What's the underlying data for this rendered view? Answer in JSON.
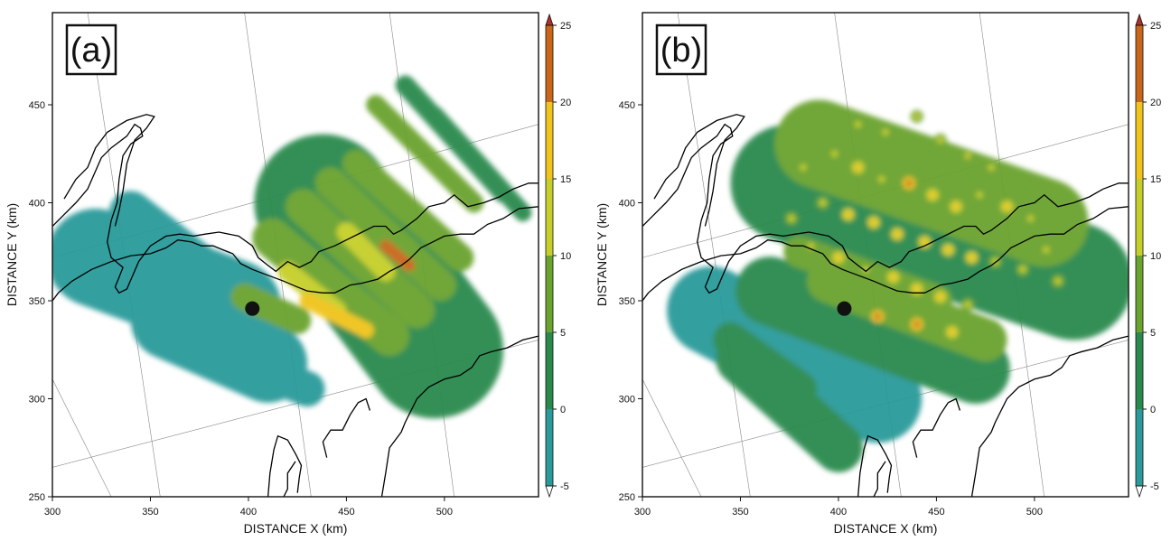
{
  "chart_data": [
    {
      "type": "heatmap",
      "panel_label": "(a)",
      "xlabel": "DISTANCE X (km)",
      "ylabel": "DISTANCE Y (km)",
      "xlim": [
        300,
        548
      ],
      "ylim": [
        250,
        497
      ],
      "x_ticks": [
        "300",
        "350",
        "400",
        "450",
        "500"
      ],
      "y_ticks": [
        "250",
        "300",
        "350",
        "400",
        "450"
      ],
      "colorbar": {
        "ticks": [
          "-5",
          "0",
          "5",
          "10",
          "15",
          "20",
          "25"
        ],
        "range": [
          -5,
          25
        ],
        "colors": [
          "#2a9a9a",
          "#2a8a4e",
          "#6aa32e",
          "#c6cf2a",
          "#f0c41a",
          "#c9661a"
        ]
      },
      "radar_site": {
        "x": 402,
        "y": 346
      },
      "bands": [
        {
          "x1": 322,
          "y1": 372,
          "x2": 392,
          "y2": 346,
          "width": 50,
          "value": -2
        },
        {
          "x1": 340,
          "y1": 395,
          "x2": 395,
          "y2": 352,
          "width": 22,
          "value": -1
        },
        {
          "x1": 360,
          "y1": 340,
          "x2": 410,
          "y2": 318,
          "width": 40,
          "value": -2
        },
        {
          "x1": 380,
          "y1": 325,
          "x2": 430,
          "y2": 305,
          "width": 18,
          "value": -2
        },
        {
          "x1": 438,
          "y1": 400,
          "x2": 495,
          "y2": 325,
          "width": 70,
          "value": 3
        },
        {
          "x1": 412,
          "y1": 382,
          "x2": 472,
          "y2": 332,
          "width": 20,
          "value": 8
        },
        {
          "x1": 428,
          "y1": 398,
          "x2": 486,
          "y2": 345,
          "width": 18,
          "value": 9
        },
        {
          "x1": 442,
          "y1": 410,
          "x2": 498,
          "y2": 358,
          "width": 16,
          "value": 8
        },
        {
          "x1": 455,
          "y1": 420,
          "x2": 508,
          "y2": 372,
          "width": 14,
          "value": 7
        },
        {
          "x1": 465,
          "y1": 450,
          "x2": 515,
          "y2": 400,
          "width": 10,
          "value": 5
        },
        {
          "x1": 480,
          "y1": 460,
          "x2": 530,
          "y2": 405,
          "width": 10,
          "value": 4
        },
        {
          "x1": 495,
          "y1": 445,
          "x2": 540,
          "y2": 395,
          "width": 9,
          "value": 4
        },
        {
          "x1": 420,
          "y1": 365,
          "x2": 445,
          "y2": 345,
          "width": 10,
          "value": 14
        },
        {
          "x1": 450,
          "y1": 385,
          "x2": 470,
          "y2": 365,
          "width": 10,
          "value": 13
        },
        {
          "x1": 430,
          "y1": 350,
          "x2": 460,
          "y2": 335,
          "width": 8,
          "value": 17
        },
        {
          "x1": 470,
          "y1": 378,
          "x2": 482,
          "y2": 368,
          "width": 6,
          "value": 20
        },
        {
          "x1": 398,
          "y1": 352,
          "x2": 425,
          "y2": 340,
          "width": 14,
          "value": 6
        }
      ]
    },
    {
      "type": "heatmap",
      "panel_label": "(b)",
      "xlabel": "DISTANCE X (km)",
      "ylabel": "DISTANCE Y (km)",
      "xlim": [
        300,
        548
      ],
      "ylim": [
        250,
        497
      ],
      "x_ticks": [
        "300",
        "350",
        "400",
        "450",
        "500"
      ],
      "y_ticks": [
        "250",
        "300",
        "350",
        "400",
        "450"
      ],
      "colorbar": {
        "ticks": [
          "-5",
          "0",
          "5",
          "10",
          "15",
          "20",
          "25"
        ],
        "range": [
          -5,
          25
        ],
        "colors": [
          "#2a9a9a",
          "#2a8a4e",
          "#6aa32e",
          "#c6cf2a",
          "#f0c41a",
          "#c9661a"
        ]
      },
      "radar_site": {
        "x": 403,
        "y": 346
      },
      "bands": [
        {
          "x1": 335,
          "y1": 345,
          "x2": 420,
          "y2": 300,
          "width": 45,
          "value": -1
        },
        {
          "x1": 350,
          "y1": 320,
          "x2": 400,
          "y2": 275,
          "width": 25,
          "value": 0
        },
        {
          "x1": 365,
          "y1": 355,
          "x2": 470,
          "y2": 315,
          "width": 35,
          "value": 3
        },
        {
          "x1": 395,
          "y1": 360,
          "x2": 475,
          "y2": 330,
          "width": 22,
          "value": 7
        },
        {
          "x1": 380,
          "y1": 375,
          "x2": 450,
          "y2": 350,
          "width": 16,
          "value": 6
        },
        {
          "x1": 345,
          "y1": 330,
          "x2": 380,
          "y2": 305,
          "width": 18,
          "value": 2
        },
        {
          "x1": 375,
          "y1": 410,
          "x2": 520,
          "y2": 360,
          "width": 60,
          "value": 4
        },
        {
          "x1": 390,
          "y1": 430,
          "x2": 505,
          "y2": 390,
          "width": 45,
          "value": 6
        }
      ],
      "cells": [
        {
          "x": 398,
          "y": 425,
          "value": 14
        },
        {
          "x": 410,
          "y": 418,
          "value": 16
        },
        {
          "x": 422,
          "y": 412,
          "value": 14
        },
        {
          "x": 436,
          "y": 410,
          "value": 21
        },
        {
          "x": 448,
          "y": 404,
          "value": 15
        },
        {
          "x": 460,
          "y": 398,
          "value": 16
        },
        {
          "x": 472,
          "y": 404,
          "value": 14
        },
        {
          "x": 486,
          "y": 398,
          "value": 15
        },
        {
          "x": 498,
          "y": 392,
          "value": 13
        },
        {
          "x": 392,
          "y": 400,
          "value": 13
        },
        {
          "x": 405,
          "y": 394,
          "value": 16
        },
        {
          "x": 418,
          "y": 390,
          "value": 15
        },
        {
          "x": 430,
          "y": 384,
          "value": 17
        },
        {
          "x": 444,
          "y": 380,
          "value": 15
        },
        {
          "x": 456,
          "y": 376,
          "value": 18
        },
        {
          "x": 468,
          "y": 372,
          "value": 16
        },
        {
          "x": 480,
          "y": 370,
          "value": 14
        },
        {
          "x": 494,
          "y": 366,
          "value": 13
        },
        {
          "x": 386,
          "y": 378,
          "value": 12
        },
        {
          "x": 400,
          "y": 372,
          "value": 15
        },
        {
          "x": 414,
          "y": 366,
          "value": 14
        },
        {
          "x": 428,
          "y": 362,
          "value": 16
        },
        {
          "x": 440,
          "y": 356,
          "value": 15
        },
        {
          "x": 452,
          "y": 352,
          "value": 17
        },
        {
          "x": 466,
          "y": 348,
          "value": 14
        },
        {
          "x": 410,
          "y": 440,
          "value": 13
        },
        {
          "x": 424,
          "y": 436,
          "value": 12
        },
        {
          "x": 440,
          "y": 444,
          "value": 13
        },
        {
          "x": 452,
          "y": 432,
          "value": 12
        },
        {
          "x": 466,
          "y": 424,
          "value": 13
        },
        {
          "x": 478,
          "y": 418,
          "value": 12
        },
        {
          "x": 420,
          "y": 342,
          "value": 20
        },
        {
          "x": 440,
          "y": 338,
          "value": 21
        },
        {
          "x": 458,
          "y": 334,
          "value": 16
        },
        {
          "x": 376,
          "y": 392,
          "value": 11
        },
        {
          "x": 382,
          "y": 418,
          "value": 10
        },
        {
          "x": 506,
          "y": 376,
          "value": 11
        },
        {
          "x": 512,
          "y": 360,
          "value": 10
        }
      ]
    }
  ],
  "map_overlay": {
    "coastline_color": "#000000",
    "graticule_color": "#888888"
  }
}
